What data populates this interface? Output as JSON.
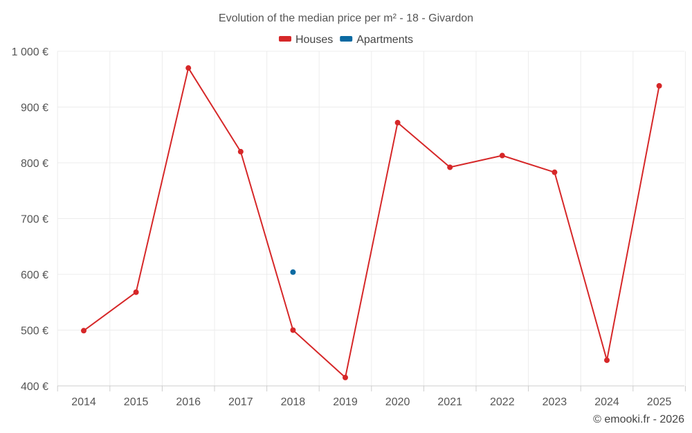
{
  "chart_data": {
    "type": "line",
    "title": "Evolution of the median price per m² - 18 - Givardon",
    "categories": [
      "2014",
      "2015",
      "2016",
      "2017",
      "2018",
      "2019",
      "2020",
      "2021",
      "2022",
      "2023",
      "2024",
      "2025"
    ],
    "series": [
      {
        "name": "Houses",
        "color": "#d62728",
        "values": [
          499,
          568,
          970,
          820,
          500,
          415,
          872,
          792,
          813,
          783,
          446,
          938
        ]
      },
      {
        "name": "Apartments",
        "color": "#0b6aa2",
        "values": [
          null,
          null,
          null,
          null,
          604,
          null,
          null,
          null,
          null,
          null,
          null,
          null
        ]
      }
    ],
    "ylim": [
      400,
      1000
    ],
    "yticks": [
      400,
      500,
      600,
      700,
      800,
      900,
      1000
    ],
    "ytick_labels": [
      "400 €",
      "500 €",
      "600 €",
      "700 €",
      "800 €",
      "900 €",
      "1 000 €"
    ],
    "xlabel": "",
    "ylabel": "",
    "grid": true,
    "legend_position": "top-center"
  },
  "footer": {
    "copyright": "© emooki.fr - 2026"
  }
}
